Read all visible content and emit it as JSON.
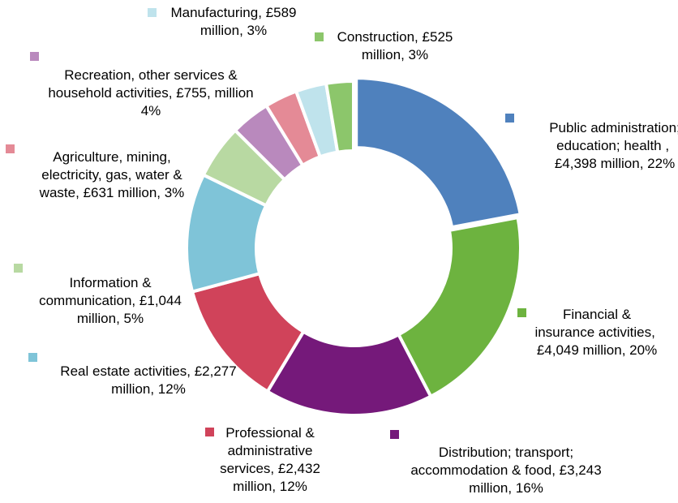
{
  "chart_data": {
    "type": "donut",
    "categories": [
      "Public administration; education; health ,",
      "Financial & insurance activities,",
      "Distribution; transport; accommodation & food,",
      "Professional & administrative services,",
      "Real estate activities,",
      "Information & communication,",
      "Recreation, other services & household activities,",
      "Agriculture, mining, electricity, gas, water & waste,",
      "Manufacturing,",
      "Construction,"
    ],
    "values": [
      4398,
      4049,
      3243,
      2432,
      2277,
      1044,
      755,
      631,
      589,
      525
    ],
    "value_labels": [
      "£4,398 million, 22%",
      "£4,049 million, 20%",
      "£3,243 million, 16%",
      "£2,432 million, 12%",
      "£2,277 million, 12%",
      "£1,044 million, 5%",
      "£755, million 4%",
      "£631 million, 3%",
      "£589 million, 3%",
      "£525 million, 3%"
    ],
    "colors": [
      "#4f81bd",
      "#6db33f",
      "#75197a",
      "#d0435a",
      "#7fc4d8",
      "#b8d9a2",
      "#b989bd",
      "#e48a96",
      "#bfe3ec",
      "#8cc66b"
    ]
  }
}
